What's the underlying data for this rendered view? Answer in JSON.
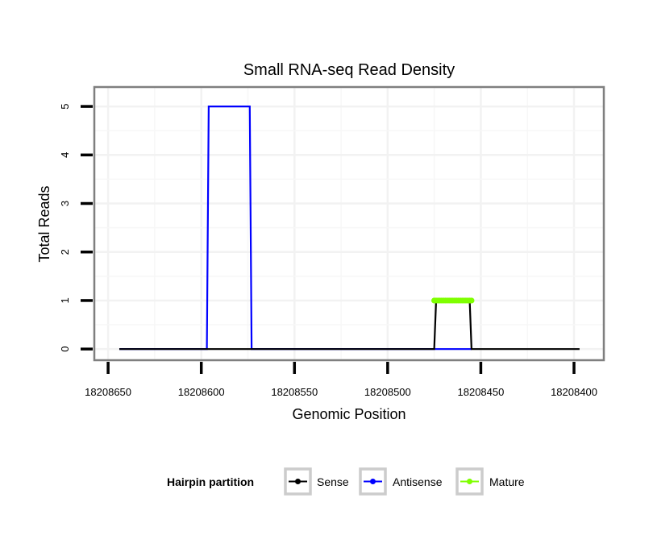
{
  "chart_data": {
    "type": "line",
    "title": "Small RNA-seq Read Density",
    "xlabel": "Genomic Position",
    "ylabel": "Total Reads",
    "xlim": [
      18208657.4,
      18208384
    ],
    "x_reversed": true,
    "ylim": [
      -0.23,
      5.4
    ],
    "xticks": [
      18208650,
      18208600,
      18208550,
      18208500,
      18208450,
      18208400
    ],
    "xtick_labels": [
      "18208650",
      "18208600",
      "18208550",
      "18208500",
      "18208450",
      "18208400"
    ],
    "yticks": [
      0,
      1,
      2,
      3,
      4,
      5
    ],
    "ytick_labels": [
      "0",
      "1",
      "2",
      "3",
      "4",
      "5"
    ],
    "grid": true,
    "legend": {
      "title": "Hairpin partition",
      "placement": "bottom",
      "entries": [
        "Sense",
        "Antisense",
        "Mature"
      ]
    },
    "series": [
      {
        "name": "Antisense",
        "color": "#0000ff",
        "style": "line",
        "points": [
          [
            18208644,
            0
          ],
          [
            18208597,
            0
          ],
          [
            18208596,
            5
          ],
          [
            18208574,
            5
          ],
          [
            18208573,
            0
          ],
          [
            18208455,
            0
          ]
        ]
      },
      {
        "name": "Sense",
        "color": "#000000",
        "style": "line",
        "points": [
          [
            18208644,
            0
          ],
          [
            18208475,
            0
          ],
          [
            18208474,
            1
          ],
          [
            18208456,
            1
          ],
          [
            18208455,
            0
          ],
          [
            18208397,
            0
          ]
        ]
      },
      {
        "name": "Mature",
        "color": "#7fff00",
        "style": "points+line",
        "points": [
          [
            18208475,
            1
          ],
          [
            18208474,
            1
          ],
          [
            18208473,
            1
          ],
          [
            18208472,
            1
          ],
          [
            18208471,
            1
          ],
          [
            18208470,
            1
          ],
          [
            18208469,
            1
          ],
          [
            18208468,
            1
          ],
          [
            18208467,
            1
          ],
          [
            18208466,
            1
          ],
          [
            18208465,
            1
          ],
          [
            18208464,
            1
          ],
          [
            18208463,
            1
          ],
          [
            18208462,
            1
          ],
          [
            18208461,
            1
          ],
          [
            18208460,
            1
          ],
          [
            18208459,
            1
          ],
          [
            18208458,
            1
          ],
          [
            18208457,
            1
          ],
          [
            18208456,
            1
          ],
          [
            18208455,
            1
          ]
        ]
      }
    ]
  }
}
